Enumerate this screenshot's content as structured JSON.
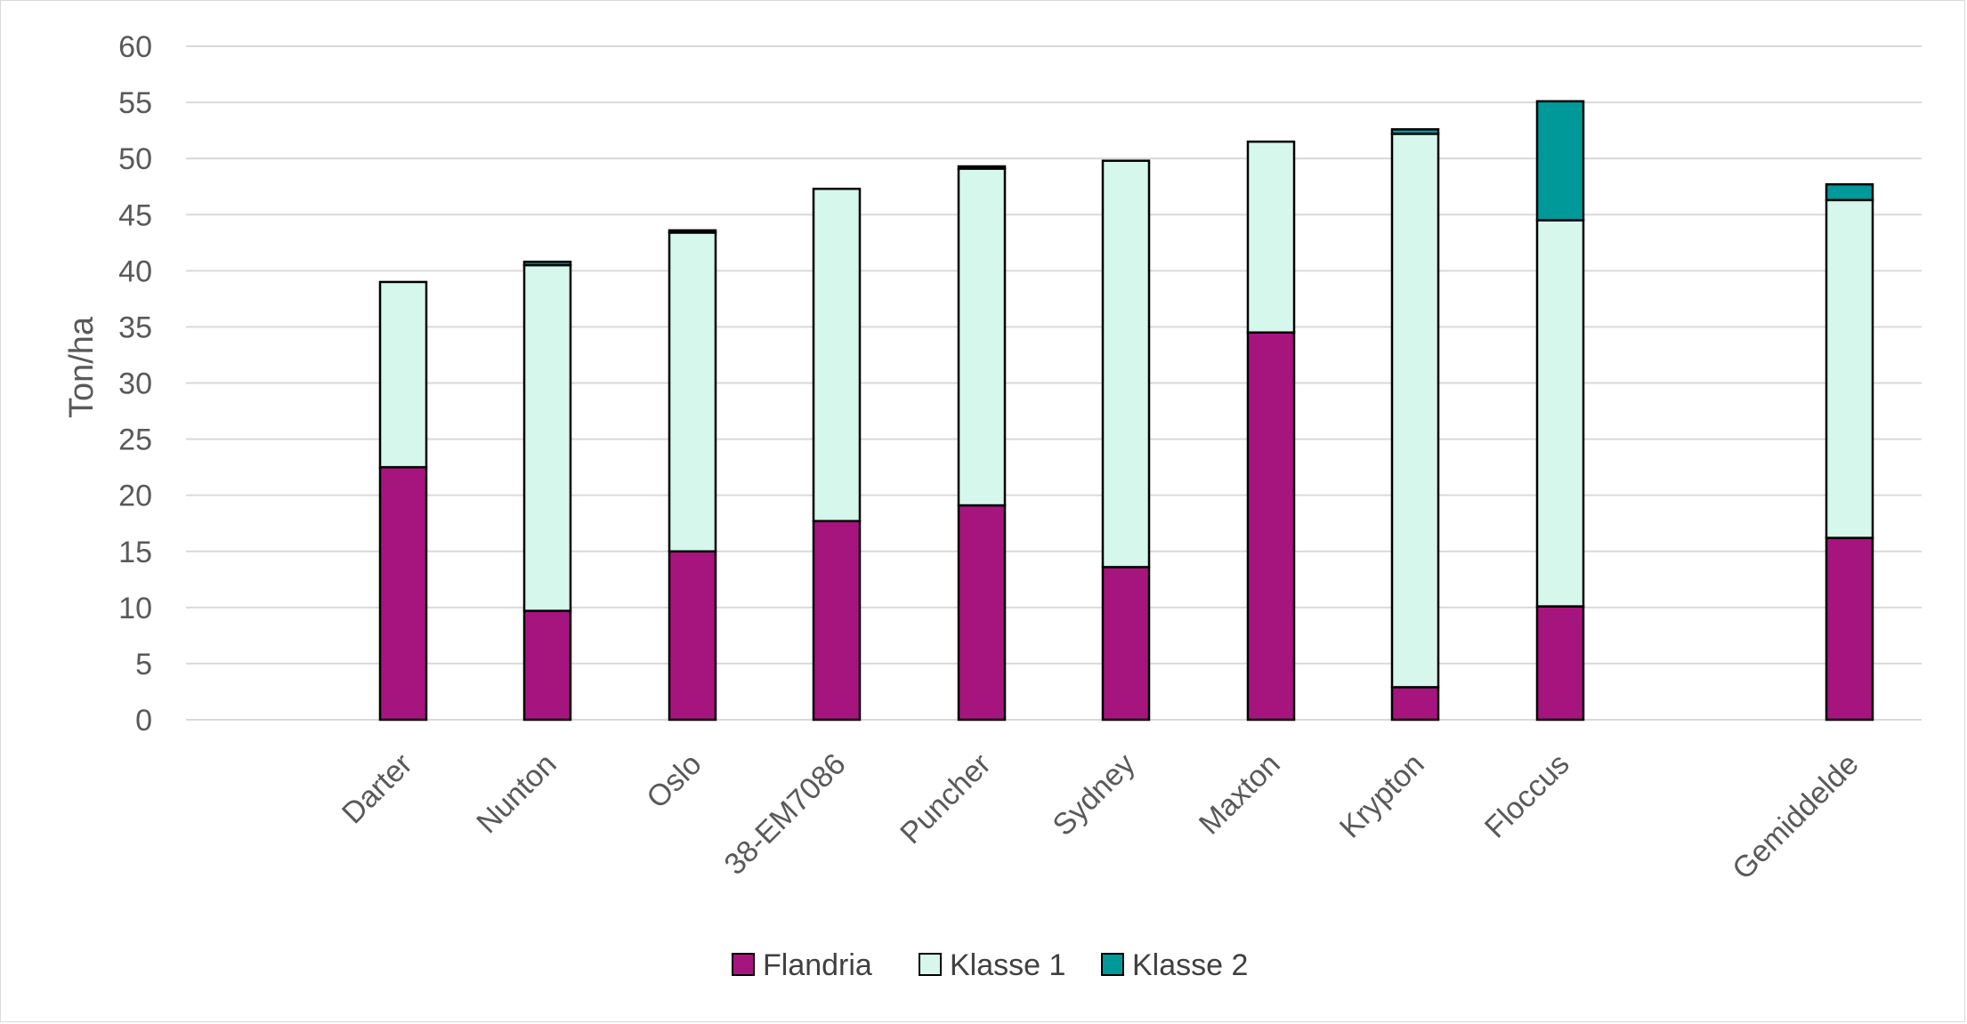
{
  "chart_data": {
    "type": "bar",
    "stacked": true,
    "categories": [
      "Darter",
      "Nunton",
      "Oslo",
      "38-EM7086",
      "Puncher",
      "Sydney",
      "Maxton",
      "Krypton",
      "Floccus",
      "Gemiddelde"
    ],
    "series": [
      {
        "name": "Flandria",
        "color": "#a6157e",
        "values": [
          22.5,
          9.7,
          15.0,
          17.7,
          19.1,
          13.6,
          34.5,
          2.9,
          10.1,
          16.2
        ]
      },
      {
        "name": "Klasse 1",
        "color": "#d5f7ec",
        "values": [
          16.5,
          30.8,
          28.4,
          29.6,
          30.0,
          36.2,
          17.0,
          49.3,
          34.4,
          30.1
        ]
      },
      {
        "name": "Klasse 2",
        "color": "#009999",
        "values": [
          0.0,
          0.3,
          0.2,
          0.0,
          0.2,
          0.0,
          0.0,
          0.4,
          10.6,
          1.4
        ]
      }
    ],
    "ylabel": "Ton/ha",
    "xlabel": "",
    "ylim": [
      0,
      60
    ],
    "yticks": [
      0,
      5,
      10,
      15,
      20,
      25,
      30,
      35,
      40,
      45,
      50,
      55,
      60
    ],
    "grid": true,
    "legend_position": "bottom"
  }
}
